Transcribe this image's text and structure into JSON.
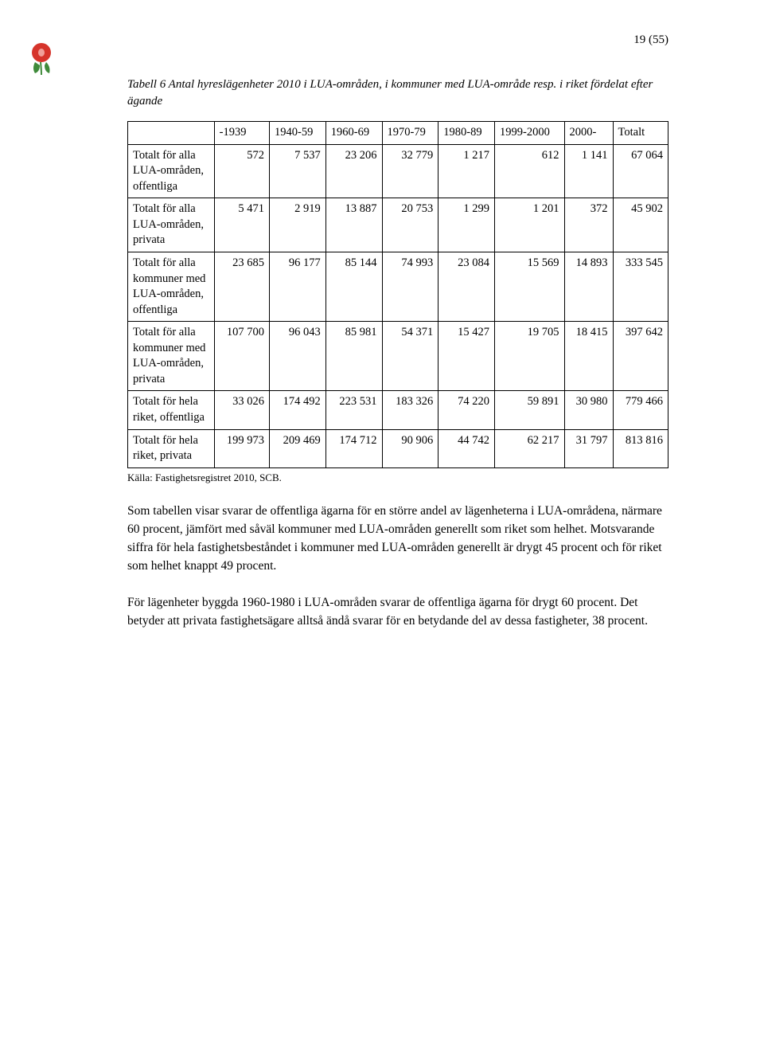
{
  "page_number": "19 (55)",
  "caption": "Tabell 6 Antal hyreslägenheter 2010 i LUA-områden, i kommuner med LUA-område resp. i riket fördelat efter ägande",
  "table": {
    "columns": [
      "",
      "-1939",
      "1940-59",
      "1960-69",
      "1970-79",
      "1980-89",
      "1999-2000",
      "2000-",
      "Totalt"
    ],
    "rows": [
      {
        "label": "Totalt för alla LUA-områden, offentliga",
        "cells": [
          "572",
          "7 537",
          "23 206",
          "32 779",
          "1 217",
          "612",
          "1 141",
          "67 064"
        ]
      },
      {
        "label": "Totalt för alla LUA-områden, privata",
        "cells": [
          "5 471",
          "2 919",
          "13 887",
          "20 753",
          "1 299",
          "1 201",
          "372",
          "45 902"
        ]
      },
      {
        "label": "Totalt för alla kommuner med LUA-områden, offentliga",
        "cells": [
          "23 685",
          "96 177",
          "85 144",
          "74 993",
          "23 084",
          "15 569",
          "14 893",
          "333 545"
        ]
      },
      {
        "label": "Totalt för alla kommuner med LUA-områden, privata",
        "cells": [
          "107 700",
          "96 043",
          "85 981",
          "54 371",
          "15 427",
          "19 705",
          "18 415",
          "397 642"
        ]
      },
      {
        "label": "Totalt för hela riket, offentliga",
        "cells": [
          "33 026",
          "174 492",
          "223 531",
          "183 326",
          "74 220",
          "59 891",
          "30 980",
          "779 466"
        ]
      },
      {
        "label": "Totalt för hela riket, privata",
        "cells": [
          "199 973",
          "209 469",
          "174 712",
          "90 906",
          "44 742",
          "62 217",
          "31 797",
          "813 816"
        ]
      }
    ]
  },
  "source": "Källa: Fastighetsregistret 2010, SCB.",
  "para1": "Som tabellen visar svarar de offentliga ägarna för en större andel av lägenheterna i LUA-områdena, närmare 60 procent, jämfört med såväl kommuner med LUA-områden generellt som riket som helhet. Motsvarande siffra för hela fastighetsbeståndet i kommuner med LUA-områden generellt är drygt 45 procent och för riket som helhet knappt 49 procent.",
  "para2": "För lägenheter byggda 1960-1980 i LUA-områden svarar de offentliga ägarna för drygt 60 procent. Det betyder att privata fastighetsägare alltså ändå svarar för en betydande del av dessa fastigheter, 38 procent.",
  "logo_colors": {
    "flower": "#d6342b",
    "leaf": "#3f8a3a"
  }
}
